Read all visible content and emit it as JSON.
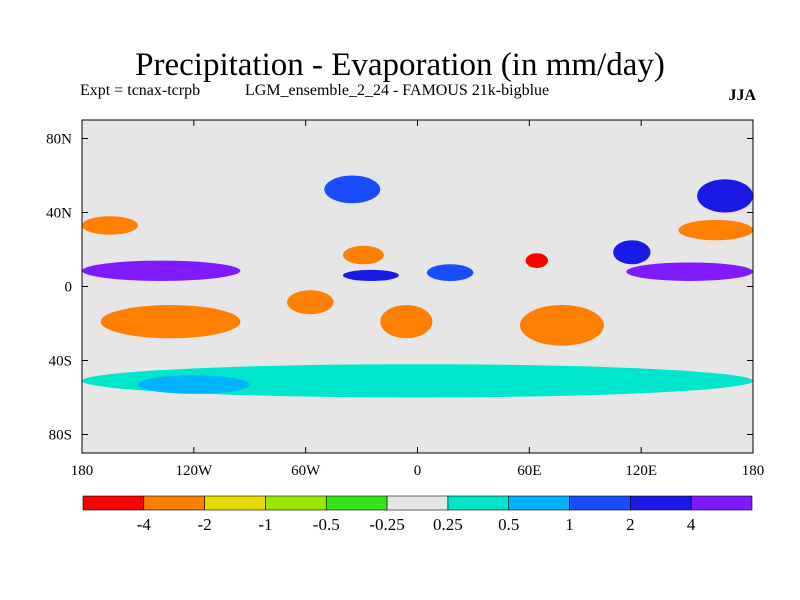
{
  "header": {
    "title": "Precipitation - Evaporation (in mm/day)",
    "experiment": "Expt = tcnax-tcrpb",
    "run": "LGM_ensemble_2_24 - FAMOUS 21k-bigblue",
    "season": "JJA"
  },
  "chart_data": {
    "type": "heatmap",
    "title": "Precipitation - Evaporation (in mm/day)",
    "xlabel": "",
    "ylabel": "",
    "xlim": [
      -180,
      180
    ],
    "ylim": [
      -90,
      90
    ],
    "x_ticks": [
      {
        "value": -180,
        "label": "180"
      },
      {
        "value": -120,
        "label": "120W"
      },
      {
        "value": -60,
        "label": "60W"
      },
      {
        "value": 0,
        "label": "0"
      },
      {
        "value": 60,
        "label": "60E"
      },
      {
        "value": 120,
        "label": "120E"
      },
      {
        "value": 180,
        "label": "180"
      }
    ],
    "y_ticks": [
      {
        "value": 80,
        "label": "80N"
      },
      {
        "value": 40,
        "label": "40N"
      },
      {
        "value": 0,
        "label": "0"
      },
      {
        "value": -40,
        "label": "40S"
      },
      {
        "value": -80,
        "label": "80S"
      }
    ],
    "colorbar": {
      "colors": [
        "#ff0000",
        "#ff7f00",
        "#e6d800",
        "#99e600",
        "#33e61a",
        "#e6e6e6",
        "#00e6cc",
        "#00b2ff",
        "#1a4cff",
        "#1a1ae6",
        "#7f1aff"
      ],
      "levels": [
        "-4",
        "-2",
        "-1",
        "-0.5",
        "-0.25",
        "0.25",
        "0.5",
        "1",
        "2",
        "4"
      ]
    },
    "background_class": 5,
    "regions": [
      {
        "name": "pacific-itcz-east",
        "class": 10,
        "lon": [
          -180,
          -95
        ],
        "lat": [
          3,
          14
        ]
      },
      {
        "name": "pacific-itcz-west",
        "class": 10,
        "lon": [
          112,
          180
        ],
        "lat": [
          3,
          13
        ]
      },
      {
        "name": "pacific-subtropics-north",
        "class": 1,
        "lon": [
          140,
          180
        ],
        "lat": [
          25,
          36
        ]
      },
      {
        "name": "pacific-subtropics-north-east",
        "class": 1,
        "lon": [
          -180,
          -150
        ],
        "lat": [
          28,
          38
        ]
      },
      {
        "name": "south-pacific-dry",
        "class": 1,
        "lon": [
          -170,
          -95
        ],
        "lat": [
          -28,
          -10
        ]
      },
      {
        "name": "south-atlantic-dry",
        "class": 1,
        "lon": [
          -20,
          8
        ],
        "lat": [
          -28,
          -10
        ]
      },
      {
        "name": "south-indian-dry",
        "class": 1,
        "lon": [
          55,
          100
        ],
        "lat": [
          -32,
          -10
        ]
      },
      {
        "name": "north-atlantic-dry",
        "class": 1,
        "lon": [
          -40,
          -18
        ],
        "lat": [
          12,
          22
        ]
      },
      {
        "name": "arabian-sea-dry",
        "class": 0,
        "lon": [
          58,
          70
        ],
        "lat": [
          10,
          18
        ]
      },
      {
        "name": "south-china-sea-wet",
        "class": 9,
        "lon": [
          105,
          125
        ],
        "lat": [
          12,
          25
        ]
      },
      {
        "name": "west-pacific-storm-track",
        "class": 9,
        "lon": [
          150,
          180
        ],
        "lat": [
          40,
          58
        ]
      },
      {
        "name": "north-atlantic-storm-track",
        "class": 8,
        "lon": [
          -50,
          -20
        ],
        "lat": [
          45,
          60
        ]
      },
      {
        "name": "southern-ocean-band",
        "class": 6,
        "lon": [
          -180,
          180
        ],
        "lat": [
          -60,
          -42
        ]
      },
      {
        "name": "southern-ocean-wet",
        "class": 7,
        "lon": [
          -150,
          -90
        ],
        "lat": [
          -58,
          -48
        ]
      },
      {
        "name": "amazon-dry",
        "class": 1,
        "lon": [
          -70,
          -45
        ],
        "lat": [
          -15,
          -2
        ]
      },
      {
        "name": "tropical-atlantic-wet",
        "class": 9,
        "lon": [
          -40,
          -10
        ],
        "lat": [
          3,
          9
        ]
      },
      {
        "name": "central-africa-wet",
        "class": 8,
        "lon": [
          5,
          30
        ],
        "lat": [
          3,
          12
        ]
      }
    ]
  }
}
